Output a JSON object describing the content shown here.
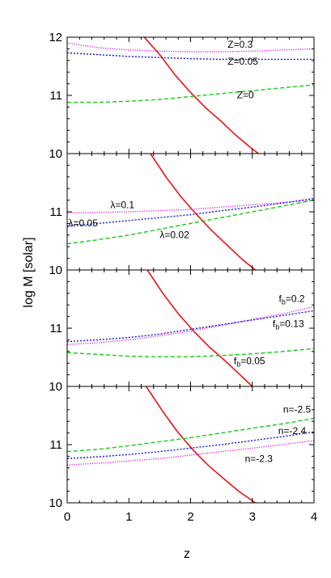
{
  "chart_data": {
    "type": "line",
    "xlabel": "z",
    "ylabel": "log M [solar]",
    "xlim": [
      0,
      4
    ],
    "xticks": [
      "0",
      "1",
      "2",
      "3",
      "4"
    ],
    "colors": {
      "critical": "#ee1111",
      "upper": "#dd22dd",
      "middle": "#1111dd",
      "lower": "#11cc11"
    },
    "panels": [
      {
        "ylim": [
          10,
          12
        ],
        "yticks": [
          "10",
          "11",
          "12"
        ],
        "series": [
          {
            "role": "critical",
            "style": "solid",
            "x": [
              1.25,
              1.5,
              1.75,
              2.0,
              2.25,
              2.5,
              2.75,
              3.0,
              3.1
            ],
            "y": [
              12.0,
              11.7,
              11.35,
              11.05,
              10.78,
              10.55,
              10.3,
              10.08,
              10.0
            ]
          },
          {
            "name": "Z=0.3",
            "role": "upper",
            "style": "dotted",
            "x": [
              0,
              0.5,
              1.0,
              1.5,
              2.0,
              2.5,
              3.0,
              3.5,
              4.0
            ],
            "y": [
              11.9,
              11.82,
              11.78,
              11.76,
              11.75,
              11.75,
              11.76,
              11.78,
              11.8
            ]
          },
          {
            "name": "Z=0.05",
            "role": "middle",
            "style": "dashed-fine",
            "x": [
              0,
              0.5,
              1.0,
              1.5,
              2.0,
              2.5,
              3.0,
              3.5,
              4.0
            ],
            "y": [
              11.73,
              11.7,
              11.67,
              11.65,
              11.63,
              11.62,
              11.62,
              11.62,
              11.62
            ]
          },
          {
            "name": "Z=0",
            "role": "lower",
            "style": "dashed",
            "x": [
              0,
              0.5,
              1.0,
              1.5,
              2.0,
              2.5,
              3.0,
              3.5,
              4.0
            ],
            "y": [
              10.88,
              10.88,
              10.9,
              10.93,
              10.98,
              11.03,
              11.08,
              11.13,
              11.18
            ]
          }
        ],
        "annotations": [
          {
            "text": "Z=0.3",
            "x": 2.6,
            "y": 11.82
          },
          {
            "text": "Z=0.05",
            "x": 2.6,
            "y": 11.53
          },
          {
            "text": "Z=0",
            "x": 2.75,
            "y": 10.95
          }
        ]
      },
      {
        "ylim": [
          10,
          12
        ],
        "yticks": [
          "10",
          "11"
        ],
        "series": [
          {
            "role": "critical",
            "style": "solid",
            "x": [
              1.35,
              1.6,
              1.85,
              2.1,
              2.35,
              2.6,
              2.85,
              3.05
            ],
            "y": [
              12.0,
              11.6,
              11.25,
              10.95,
              10.67,
              10.42,
              10.17,
              10.0
            ]
          },
          {
            "name": "λ=0.1",
            "role": "upper",
            "style": "dotted",
            "x": [
              0,
              0.5,
              1.0,
              1.5,
              2.0,
              2.5,
              3.0,
              3.5,
              4.0
            ],
            "y": [
              10.98,
              10.99,
              11.0,
              11.02,
              11.04,
              11.08,
              11.12,
              11.16,
              11.2
            ]
          },
          {
            "name": "λ=0.05",
            "role": "middle",
            "style": "dashed-fine",
            "x": [
              0,
              0.5,
              1.0,
              1.5,
              2.0,
              2.5,
              3.0,
              3.5,
              4.0
            ],
            "y": [
              10.75,
              10.8,
              10.85,
              10.9,
              10.95,
              11.02,
              11.08,
              11.15,
              11.23
            ]
          },
          {
            "name": "λ=0.02",
            "role": "lower",
            "style": "dashed",
            "x": [
              0,
              0.5,
              1.0,
              1.5,
              2.0,
              2.5,
              3.0,
              3.5,
              4.0
            ],
            "y": [
              10.45,
              10.52,
              10.6,
              10.7,
              10.8,
              10.9,
              11.0,
              11.1,
              11.2
            ]
          }
        ],
        "annotations": [
          {
            "text": "λ=0.1",
            "x": 0.7,
            "y": 11.06
          },
          {
            "text": "λ=0.05",
            "x": 0.02,
            "y": 10.75
          },
          {
            "text": "λ=0.02",
            "x": 1.5,
            "y": 10.55
          }
        ]
      },
      {
        "ylim": [
          10,
          12
        ],
        "yticks": [
          "10",
          "11"
        ],
        "series": [
          {
            "role": "critical",
            "style": "solid",
            "x": [
              1.3,
              1.55,
              1.8,
              2.05,
              2.3,
              2.55,
              2.8,
              3.0
            ],
            "y": [
              12.0,
              11.6,
              11.25,
              10.95,
              10.68,
              10.45,
              10.2,
              10.0
            ]
          },
          {
            "name": "fb=0.2",
            "role": "upper",
            "style": "dotted",
            "x": [
              0,
              0.5,
              1.0,
              1.5,
              2.0,
              2.5,
              3.0,
              3.5,
              4.0
            ],
            "y": [
              10.72,
              10.75,
              10.8,
              10.87,
              10.95,
              11.05,
              11.15,
              11.25,
              11.37
            ]
          },
          {
            "name": "fb=0.13",
            "role": "middle",
            "style": "dashed-fine",
            "x": [
              0,
              0.5,
              1.0,
              1.5,
              2.0,
              2.5,
              3.0,
              3.5,
              4.0
            ],
            "y": [
              10.77,
              10.8,
              10.84,
              10.9,
              10.98,
              11.06,
              11.14,
              11.22,
              11.3
            ]
          },
          {
            "name": "fb=0.05",
            "role": "lower",
            "style": "dashed",
            "x": [
              0,
              0.5,
              1.0,
              1.5,
              2.0,
              2.5,
              3.0,
              3.5,
              4.0
            ],
            "y": [
              10.58,
              10.55,
              10.52,
              10.51,
              10.51,
              10.53,
              10.56,
              10.6,
              10.65
            ]
          }
        ],
        "annotations": [
          {
            "base": "f",
            "sub": "b",
            "rest": "=0.2",
            "x": 3.43,
            "y": 11.45
          },
          {
            "base": "f",
            "sub": "b",
            "rest": "=0.13",
            "x": 3.33,
            "y": 11.02
          },
          {
            "base": "f",
            "sub": "b",
            "rest": "=0.05",
            "x": 2.7,
            "y": 10.38
          }
        ]
      },
      {
        "ylim": [
          10,
          12
        ],
        "yticks": [
          "10",
          "11"
        ],
        "series": [
          {
            "role": "critical",
            "style": "solid",
            "x": [
              1.28,
              1.53,
              1.78,
              2.03,
              2.28,
              2.53,
              2.78,
              3.05
            ],
            "y": [
              12.0,
              11.6,
              11.23,
              10.92,
              10.65,
              10.42,
              10.2,
              10.0
            ]
          },
          {
            "name": "n=-2.5",
            "role": "lower",
            "style": "dashed",
            "x": [
              0,
              0.5,
              1.0,
              1.5,
              2.0,
              2.5,
              3.0,
              3.5,
              4.0
            ],
            "y": [
              10.88,
              10.92,
              10.98,
              11.05,
              11.12,
              11.2,
              11.28,
              11.36,
              11.45
            ]
          },
          {
            "name": "n=-2.4",
            "role": "middle",
            "style": "dashed-fine",
            "x": [
              0,
              0.5,
              1.0,
              1.5,
              2.0,
              2.5,
              3.0,
              3.5,
              4.0
            ],
            "y": [
              10.76,
              10.79,
              10.83,
              10.88,
              10.94,
              11.0,
              11.07,
              11.14,
              11.22
            ]
          },
          {
            "name": "n=-2.3",
            "role": "upper",
            "style": "dotted",
            "x": [
              0,
              0.5,
              1.0,
              1.5,
              2.0,
              2.5,
              3.0,
              3.5,
              4.0
            ],
            "y": [
              10.65,
              10.68,
              10.72,
              10.76,
              10.82,
              10.88,
              10.94,
              11.0,
              11.07
            ]
          }
        ],
        "annotations": [
          {
            "text": "n=-2.5",
            "x": 3.5,
            "y": 11.55
          },
          {
            "text": "n=-2.4",
            "x": 3.42,
            "y": 11.18
          },
          {
            "text": "n=-2.3",
            "x": 2.88,
            "y": 10.7
          }
        ]
      }
    ]
  }
}
